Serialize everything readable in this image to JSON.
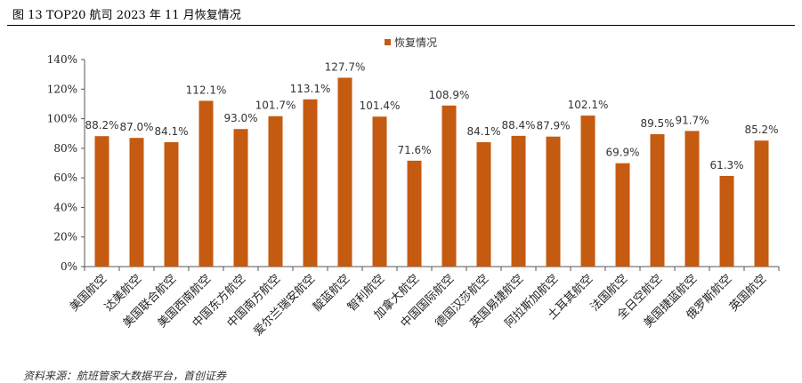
{
  "header": {
    "title": "图 13 TOP20 航司 2023 年 11 月恢复情况"
  },
  "footer": {
    "source": "资料来源：航班管家大数据平台，首创证券"
  },
  "chart_data": {
    "type": "bar",
    "legend": {
      "label": "恢复情况",
      "position": "top-center"
    },
    "color": "#C55A11",
    "ylim": [
      0,
      140
    ],
    "ytick_step": 20,
    "ytick_format": "percent",
    "grid": false,
    "categories": [
      "美国航空",
      "达美航空",
      "美国联合航空",
      "美国西南航空",
      "中国东方航空",
      "中国南方航空",
      "爱尔兰瑞安航空",
      "靛蓝航空",
      "智利航空",
      "加拿大航空",
      "中国国际航空",
      "德国汉莎航空",
      "英国易捷航空",
      "阿拉斯加航空",
      "土耳其航空",
      "法国航空",
      "全日空航空",
      "美国捷蓝航空",
      "俄罗斯航空",
      "英国航空"
    ],
    "values": [
      88.2,
      87.0,
      84.1,
      112.1,
      93.0,
      101.7,
      113.1,
      127.7,
      101.4,
      71.6,
      108.9,
      84.1,
      88.4,
      87.9,
      102.1,
      69.9,
      89.5,
      91.7,
      61.3,
      85.2
    ],
    "value_labels": [
      "88.2%",
      "87.0%",
      "84.1%",
      "112.1%",
      "93.0%",
      "101.7%",
      "113.1%",
      "127.7%",
      "101.4%",
      "71.6%",
      "108.9%",
      "84.1%",
      "88.4%",
      "87.9%",
      "102.1%",
      "69.9%",
      "89.5%",
      "91.7%",
      "61.3%",
      "85.2%"
    ]
  }
}
